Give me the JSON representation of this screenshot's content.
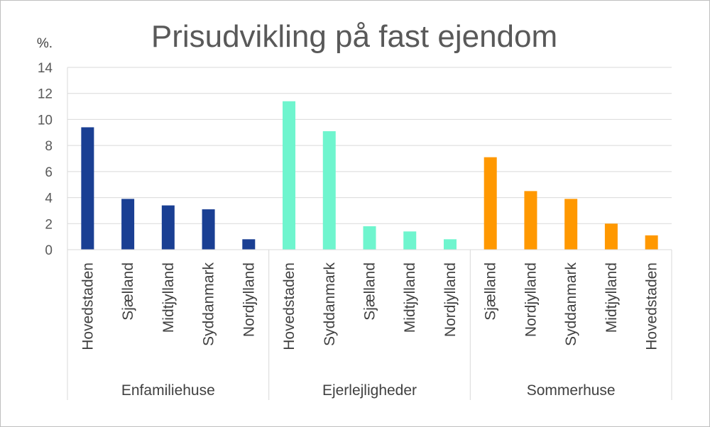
{
  "chart_data": {
    "type": "bar",
    "title": "Prisudvikling på fast ejendom",
    "ylabel": "%.",
    "xlabel": "",
    "ylim": [
      0,
      14
    ],
    "yticks": [
      0,
      2,
      4,
      6,
      8,
      10,
      12,
      14
    ],
    "grid": true,
    "legend": "none",
    "groups": [
      {
        "name": "Enfamiliehuse",
        "color": "#1a3f93",
        "categories": [
          "Hovedstaden",
          "Sjælland",
          "Midtjylland",
          "Syddanmark",
          "Nordjylland"
        ],
        "values": [
          9.4,
          3.9,
          3.4,
          3.1,
          0.8
        ]
      },
      {
        "name": "Ejerlejligheder",
        "color": "#6ff5ce",
        "categories": [
          "Hovedstaden",
          "Syddanmark",
          "Sjælland",
          "Midtjylland",
          "Nordjylland"
        ],
        "values": [
          11.4,
          9.1,
          1.8,
          1.4,
          0.8
        ]
      },
      {
        "name": "Sommerhuse",
        "color": "#ff9800",
        "categories": [
          "Sjælland",
          "Nordjylland",
          "Syddanmark",
          "Midtjylland",
          "Hovedstaden"
        ],
        "values": [
          7.1,
          4.5,
          3.9,
          2.0,
          1.1
        ]
      }
    ]
  }
}
